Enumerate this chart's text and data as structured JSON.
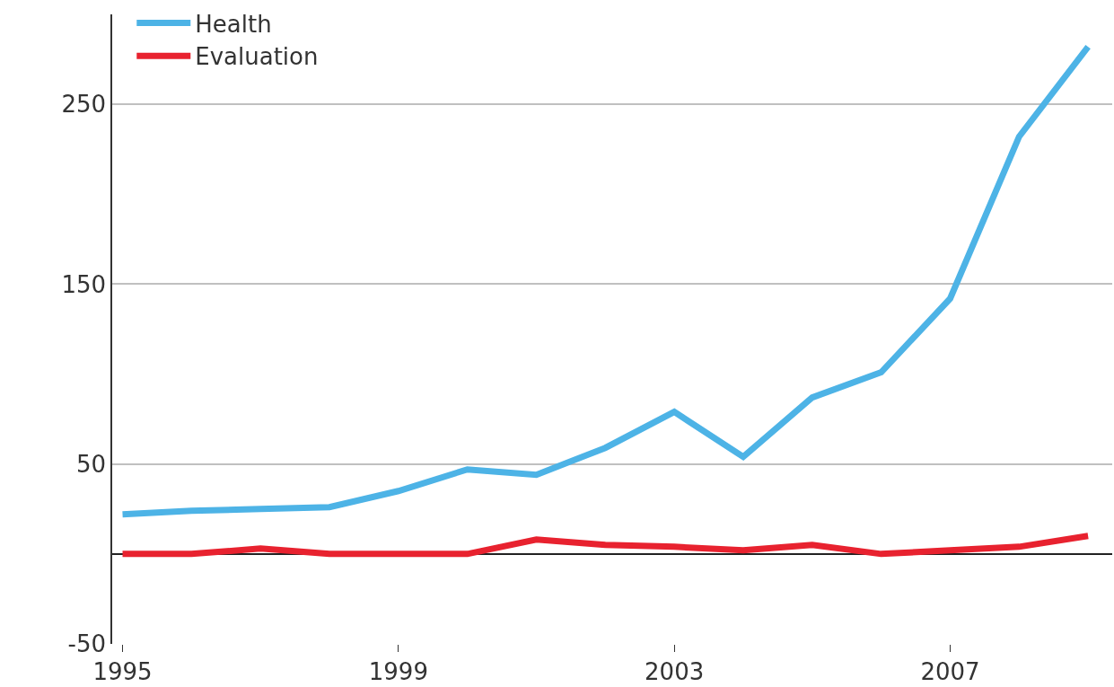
{
  "chart_data": {
    "type": "line",
    "x": [
      1995,
      1996,
      1997,
      1998,
      1999,
      2000,
      2001,
      2002,
      2003,
      2004,
      2005,
      2006,
      2007,
      2008,
      2009
    ],
    "series": [
      {
        "name": "Health",
        "color": "#4db3e6",
        "values": [
          22,
          24,
          25,
          26,
          35,
          47,
          44,
          59,
          79,
          54,
          87,
          101,
          142,
          232,
          282
        ]
      },
      {
        "name": "Evaluation",
        "color": "#e8222f",
        "values": [
          0,
          0,
          3,
          0,
          0,
          0,
          8,
          5,
          4,
          2,
          5,
          0,
          2,
          4,
          10
        ]
      }
    ],
    "xlim": [
      1994.85,
      2009.35
    ],
    "xticks": [
      1995,
      1999,
      2003,
      2007
    ],
    "ylim": [
      -50,
      300
    ],
    "yticks": [
      -50,
      50,
      150,
      250
    ],
    "grid": "y",
    "legend": "top left",
    "marker": "none",
    "line_style": "solid"
  }
}
